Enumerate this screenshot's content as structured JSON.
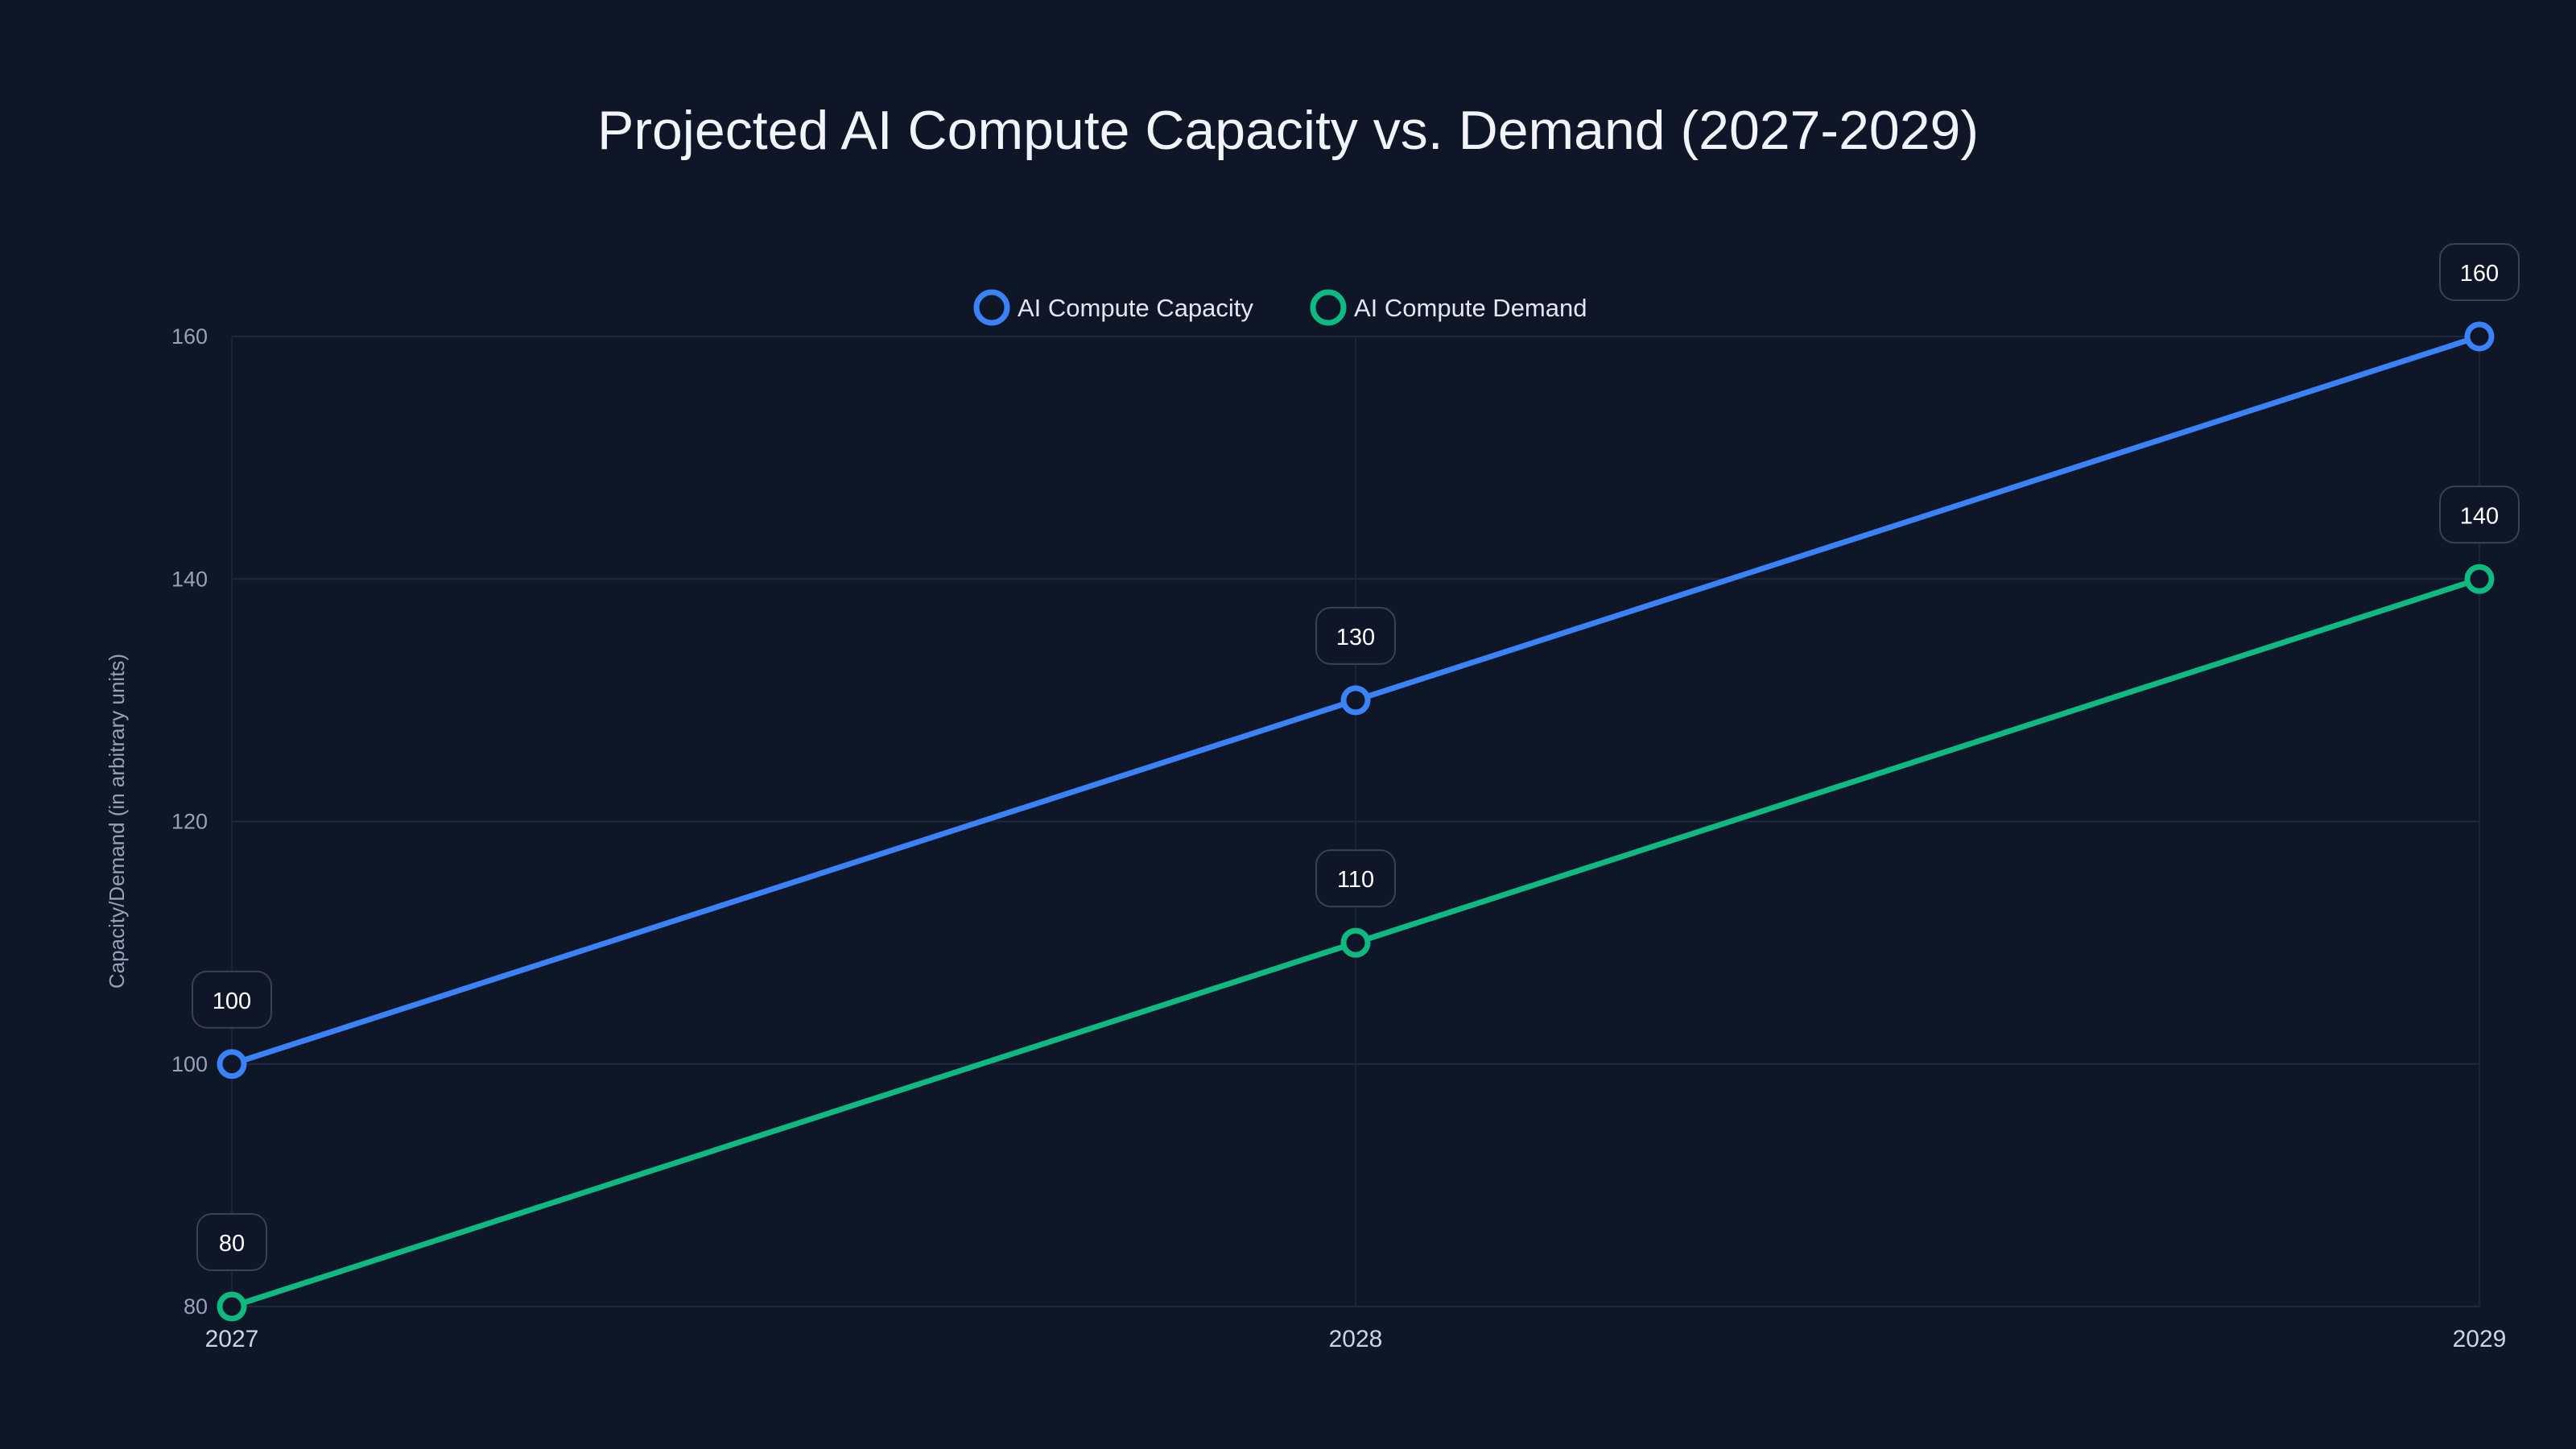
{
  "chart_data": {
    "type": "line",
    "title": "Projected AI Compute Capacity vs. Demand (2027-2029)",
    "xlabel": "",
    "ylabel": "Capacity/Demand (in arbitrary units)",
    "categories": [
      "2027",
      "2028",
      "2029"
    ],
    "yticks": [
      80,
      100,
      120,
      140,
      160
    ],
    "ylim": [
      80,
      160
    ],
    "grid": true,
    "legend_position": "top-center",
    "series": [
      {
        "name": "AI Compute Capacity",
        "color": "#3b82f6",
        "values": [
          100,
          130,
          160
        ]
      },
      {
        "name": "AI Compute Demand",
        "color": "#10b981",
        "values": [
          80,
          110,
          140
        ]
      }
    ]
  }
}
